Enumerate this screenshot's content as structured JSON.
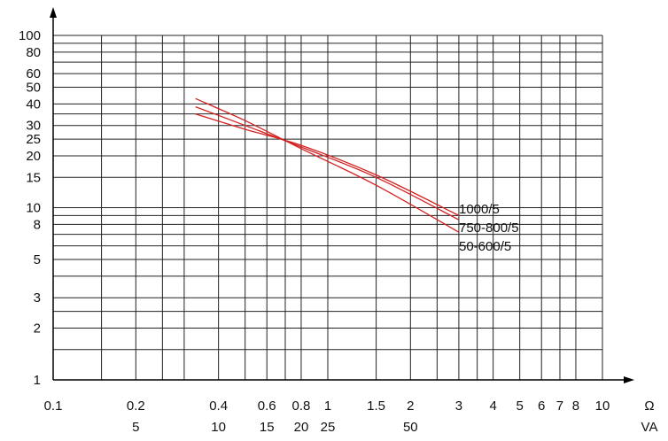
{
  "chart_data": {
    "type": "line",
    "x_scale": "log",
    "y_scale": "log",
    "xlim": [
      0.1,
      10
    ],
    "ylim": [
      1,
      100
    ],
    "grid": true,
    "x_ticks": [
      {
        "value": 0.1,
        "label": "0.1"
      },
      {
        "value": 0.2,
        "label": "0.2"
      },
      {
        "value": 0.4,
        "label": "0.4"
      },
      {
        "value": 0.6,
        "label": "0.6"
      },
      {
        "value": 0.8,
        "label": "0.8"
      },
      {
        "value": 1,
        "label": "1"
      },
      {
        "value": 1.5,
        "label": "1.5"
      },
      {
        "value": 2,
        "label": "2"
      },
      {
        "value": 3,
        "label": "3"
      },
      {
        "value": 4,
        "label": "4"
      },
      {
        "value": 5,
        "label": "5"
      },
      {
        "value": 6,
        "label": "6"
      },
      {
        "value": 7,
        "label": "7"
      },
      {
        "value": 8,
        "label": "8"
      },
      {
        "value": 10,
        "label": "10"
      }
    ],
    "x2_ticks": [
      {
        "value": 0.2,
        "label": "5"
      },
      {
        "value": 0.4,
        "label": "10"
      },
      {
        "value": 0.6,
        "label": "15"
      },
      {
        "value": 0.8,
        "label": "20"
      },
      {
        "value": 1,
        "label": "25"
      },
      {
        "value": 2,
        "label": "50"
      }
    ],
    "x_unit": "Ω",
    "x2_unit": "VA",
    "y_ticks": [
      {
        "value": 1,
        "label": "1"
      },
      {
        "value": 2,
        "label": "2"
      },
      {
        "value": 3,
        "label": "3"
      },
      {
        "value": 5,
        "label": "5"
      },
      {
        "value": 8,
        "label": "8"
      },
      {
        "value": 10,
        "label": "10"
      },
      {
        "value": 15,
        "label": "15"
      },
      {
        "value": 20,
        "label": "20"
      },
      {
        "value": 25,
        "label": "25"
      },
      {
        "value": 30,
        "label": "30"
      },
      {
        "value": 40,
        "label": "40"
      },
      {
        "value": 50,
        "label": "50"
      },
      {
        "value": 60,
        "label": "60"
      },
      {
        "value": 80,
        "label": "80"
      },
      {
        "value": 100,
        "label": "100"
      }
    ],
    "x_gridlines": [
      0.15,
      0.2,
      0.25,
      0.3,
      0.4,
      0.5,
      0.6,
      0.7,
      0.8,
      1,
      1.5,
      2,
      2.5,
      3,
      3.5,
      4,
      5,
      6,
      7,
      8,
      10
    ],
    "y_gridlines": [
      1,
      1.5,
      2,
      2.5,
      3,
      4,
      5,
      6,
      7,
      8,
      9,
      10,
      15,
      20,
      25,
      30,
      35,
      40,
      50,
      60,
      70,
      80,
      90,
      100
    ],
    "series": [
      {
        "name": "1000/5",
        "color": "#d42020",
        "x": [
          0.33,
          0.5,
          0.8,
          1.5,
          3
        ],
        "y": [
          43,
          32,
          22,
          13.5,
          7.2
        ]
      },
      {
        "name": "750-800/5",
        "color": "#d42020",
        "x": [
          0.33,
          0.5,
          0.8,
          1.5,
          3
        ],
        "y": [
          38.5,
          30,
          22.5,
          15,
          8.5
        ]
      },
      {
        "name": "50-600/5",
        "color": "#d42020",
        "x": [
          0.33,
          0.5,
          0.8,
          1.5,
          3
        ],
        "y": [
          35,
          28.5,
          23,
          15.5,
          9
        ]
      }
    ]
  }
}
